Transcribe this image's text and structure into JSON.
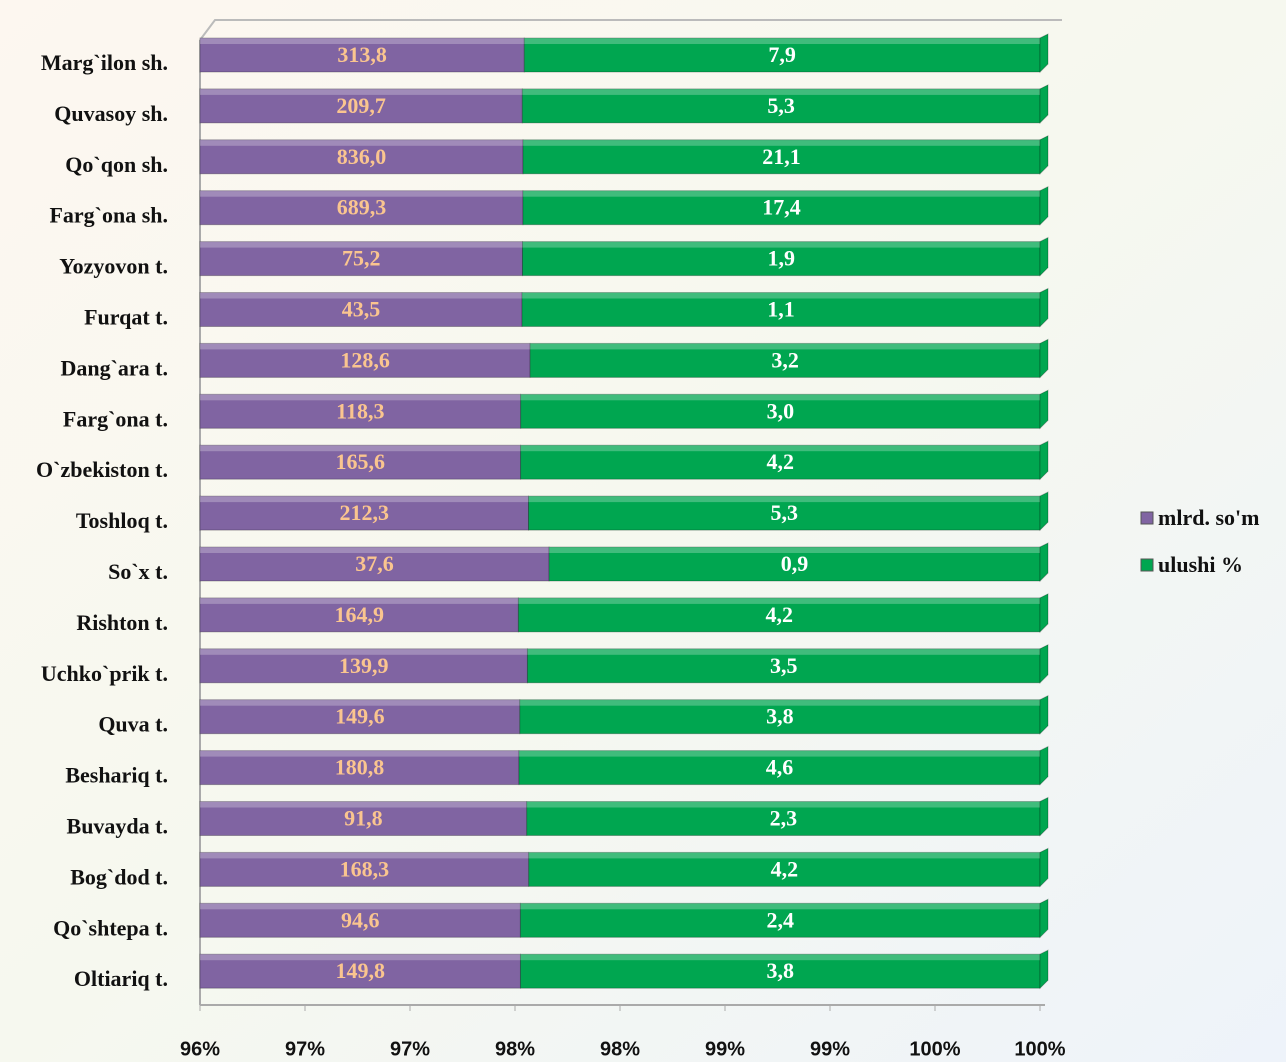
{
  "chart_data": {
    "type": "stacked_bar_100_horizontal",
    "categories": [
      "Marg`ilon sh.",
      "Quvasoy sh.",
      "Qo`qon sh.",
      "Farg`ona sh.",
      "Yozyovon t.",
      "Furqat t.",
      "Dang`ara t.",
      "Farg`ona t.",
      "O`zbekiston t.",
      "Toshloq t.",
      "So`x t.",
      "Rishton t.",
      "Uchko`prik t.",
      "Quva t.",
      "Beshariq t.",
      "Buvayda t.",
      "Bog`dod t.",
      "Qo`shtepa t.",
      "Oltiariq t."
    ],
    "series": [
      {
        "name": "mlrd. so'm",
        "color": "#8064a2",
        "label_color": "#fac58f",
        "values": [
          313.8,
          209.7,
          836.0,
          689.3,
          75.2,
          43.5,
          128.6,
          118.3,
          165.6,
          212.3,
          37.6,
          164.9,
          139.9,
          149.6,
          180.8,
          91.8,
          168.3,
          94.6,
          149.8
        ],
        "value_labels": [
          "313,8",
          "209,7",
          "836,0",
          "689,3",
          "75,2",
          "43,5",
          "128,6",
          "118,3",
          "165,6",
          "212,3",
          "37,6",
          "164,9",
          "139,9",
          "149,6",
          "180,8",
          "91,8",
          "168,3",
          "94,6",
          "149,8"
        ]
      },
      {
        "name": "ulushi %",
        "color": "#00a650",
        "label_color": "#ffffff",
        "values": [
          7.9,
          5.3,
          21.1,
          17.4,
          1.9,
          1.1,
          3.2,
          3.0,
          4.2,
          5.3,
          0.9,
          4.2,
          3.5,
          3.8,
          4.6,
          2.3,
          4.2,
          2.4,
          3.8
        ],
        "value_labels": [
          "7,9",
          "5,3",
          "21,1",
          "17,4",
          "1,9",
          "1,1",
          "3,2",
          "3,0",
          "4,2",
          "5,3",
          "0,9",
          "4,2",
          "3,5",
          "3,8",
          "4,6",
          "2,3",
          "4,2",
          "2,4",
          "3,8"
        ]
      }
    ],
    "xlim": [
      96,
      100
    ],
    "xticks": [
      {
        "value": 96,
        "label": "96%"
      },
      {
        "value": 96.5,
        "label": "97%"
      },
      {
        "value": 97,
        "label": "97%"
      },
      {
        "value": 97.5,
        "label": "98%"
      },
      {
        "value": 98,
        "label": "98%"
      },
      {
        "value": 98.5,
        "label": "99%"
      },
      {
        "value": 99,
        "label": "99%"
      },
      {
        "value": 99.5,
        "label": "100%"
      },
      {
        "value": 100,
        "label": "100%"
      }
    ],
    "legend": "right"
  }
}
